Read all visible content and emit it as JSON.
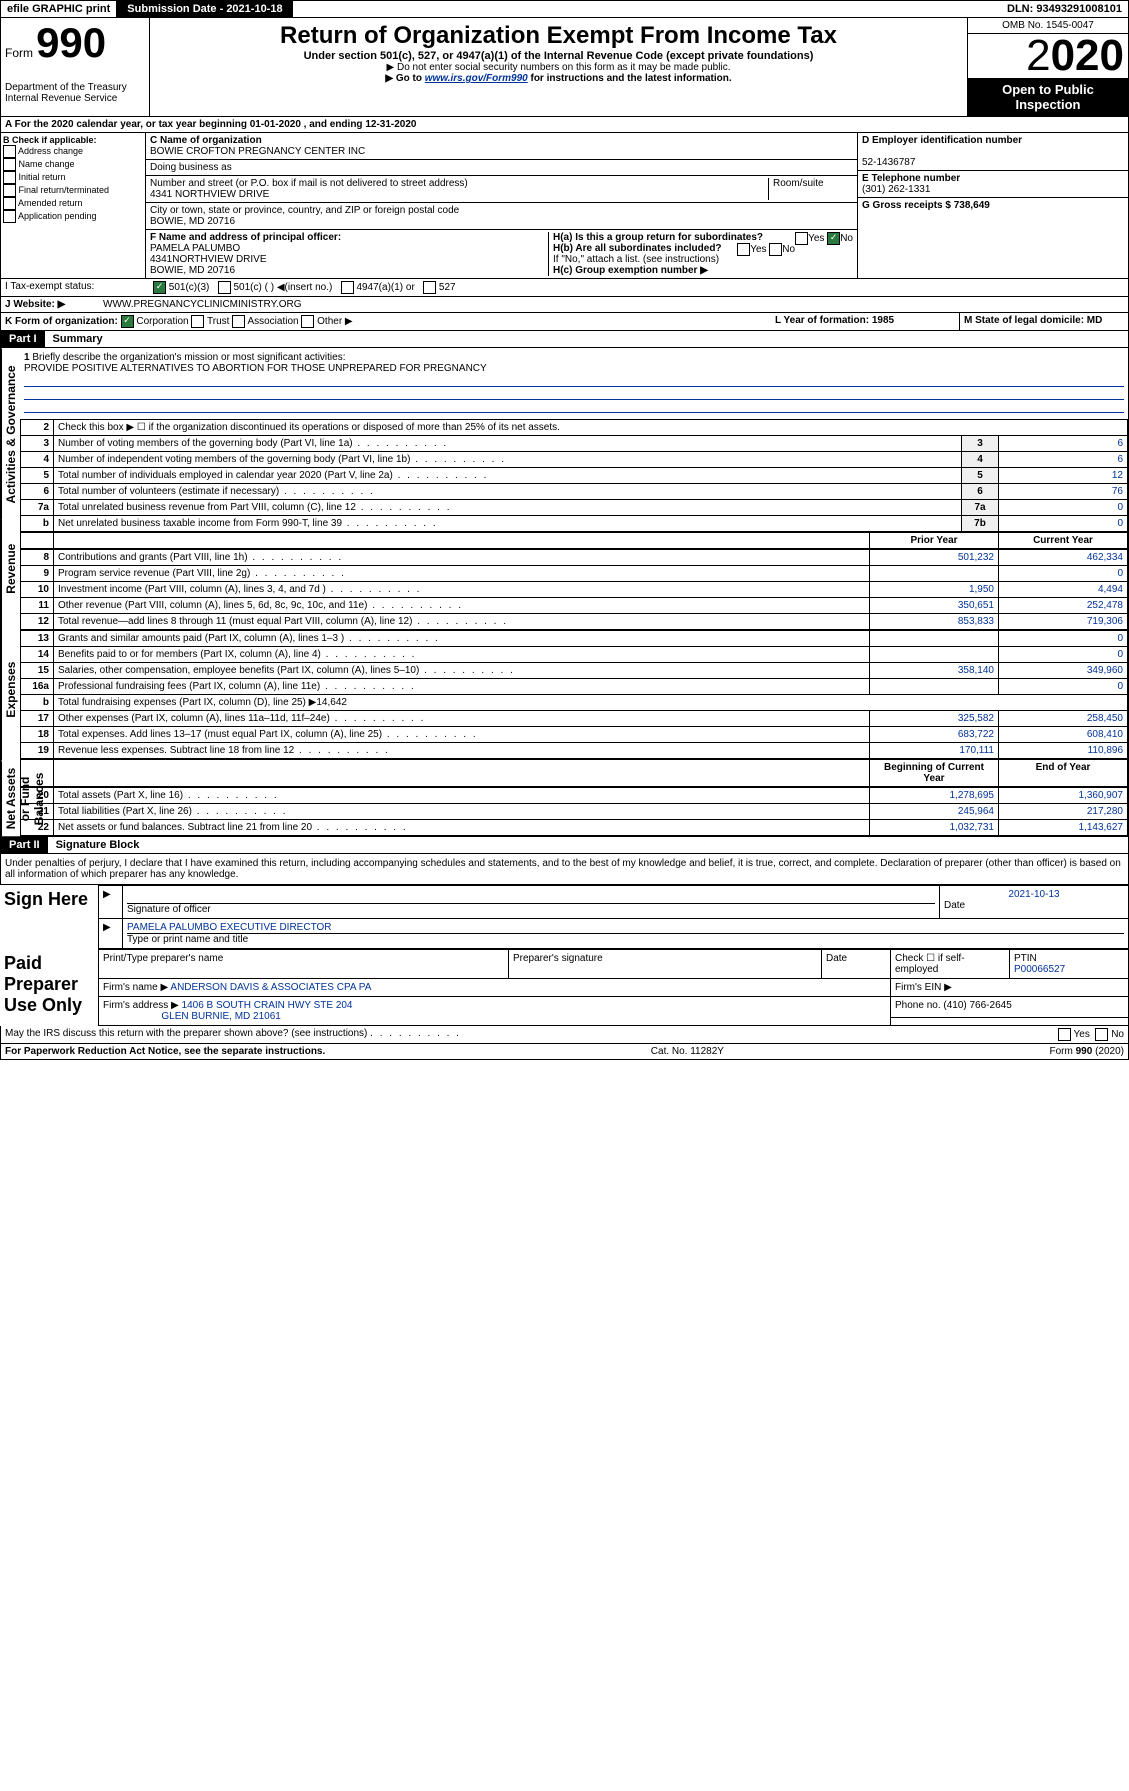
{
  "topbar": {
    "efile": "efile GRAPHIC print",
    "submission": "Submission Date - 2021-10-18",
    "dln": "DLN: 93493291008101"
  },
  "header": {
    "form_label": "Form",
    "form_no": "990",
    "dept": "Department of the Treasury\nInternal Revenue Service",
    "title": "Return of Organization Exempt From Income Tax",
    "subtitle": "Under section 501(c), 527, or 4947(a)(1) of the Internal Revenue Code (except private foundations)",
    "note1": "▶ Do not enter social security numbers on this form as it may be made public.",
    "note2_pre": "▶ Go to ",
    "note2_link": "www.irs.gov/Form990",
    "note2_post": " for instructions and the latest information.",
    "omb": "OMB No. 1545-0047",
    "year_prefix": "2",
    "year_suffix": "020",
    "open": "Open to Public Inspection"
  },
  "row_a": "A For the 2020 calendar year, or tax year beginning 01-01-2020    , and ending 12-31-2020",
  "section_b": {
    "label": "B Check if applicable:",
    "checks": [
      "Address change",
      "Name change",
      "Initial return",
      "Final return/terminated",
      "Amended return",
      "Application pending"
    ],
    "c_label": "C Name of organization",
    "c_name": "BOWIE CROFTON PREGNANCY CENTER INC",
    "dba": "Doing business as",
    "addr_label": "Number and street (or P.O. box if mail is not delivered to street address)",
    "room": "Room/suite",
    "addr": "4341 NORTHVIEW DRIVE",
    "city_label": "City or town, state or province, country, and ZIP or foreign postal code",
    "city": "BOWIE, MD  20716",
    "f_label": "F Name and address of principal officer:",
    "f_name": "PAMELA PALUMBO",
    "f_addr1": "4341NORTHVIEW DRIVE",
    "f_addr2": "BOWIE, MD  20716",
    "d_label": "D Employer identification number",
    "d_val": "52-1436787",
    "e_label": "E Telephone number",
    "e_val": "(301) 262-1331",
    "g_label": "G Gross receipts $ 738,649",
    "ha_label": "H(a)  Is this a group return for subordinates?",
    "hb_label": "H(b)  Are all subordinates included?",
    "hb_note": "If \"No,\" attach a list. (see instructions)",
    "hc_label": "H(c)  Group exemption number ▶",
    "yes": "Yes",
    "no": "No"
  },
  "row_i": {
    "label": "I    Tax-exempt status:",
    "o1": "501(c)(3)",
    "o2": "501(c) (  ) ◀(insert no.)",
    "o3": "4947(a)(1) or",
    "o4": "527"
  },
  "row_j": {
    "label": "J    Website: ▶",
    "val": "WWW.PREGNANCYCLINICMINISTRY.ORG"
  },
  "row_k": {
    "label": "K Form of organization:",
    "o1": "Corporation",
    "o2": "Trust",
    "o3": "Association",
    "o4": "Other ▶",
    "l_label": "L Year of formation: 1985",
    "m_label": "M State of legal domicile: MD"
  },
  "part1": {
    "header": "Part I",
    "title": "Summary"
  },
  "briefly": {
    "num": "1",
    "label": "Briefly describe the organization's mission or most significant activities:",
    "text": "PROVIDE POSITIVE ALTERNATIVES TO ABORTION FOR THOSE UNPREPARED FOR PREGNANCY"
  },
  "governance_rows": [
    {
      "n": "2",
      "d": "Check this box ▶ ☐  if the organization discontinued its operations or disposed of more than 25% of its net assets.",
      "box": "",
      "v": ""
    },
    {
      "n": "3",
      "d": "Number of voting members of the governing body (Part VI, line 1a)",
      "box": "3",
      "v": "6"
    },
    {
      "n": "4",
      "d": "Number of independent voting members of the governing body (Part VI, line 1b)",
      "box": "4",
      "v": "6"
    },
    {
      "n": "5",
      "d": "Total number of individuals employed in calendar year 2020 (Part V, line 2a)",
      "box": "5",
      "v": "12"
    },
    {
      "n": "6",
      "d": "Total number of volunteers (estimate if necessary)",
      "box": "6",
      "v": "76"
    },
    {
      "n": "7a",
      "d": "Total unrelated business revenue from Part VIII, column (C), line 12",
      "box": "7a",
      "v": "0"
    },
    {
      "n": "b",
      "d": "Net unrelated business taxable income from Form 990-T, line 39",
      "box": "7b",
      "v": "0"
    }
  ],
  "rev_head": {
    "prior": "Prior Year",
    "current": "Current Year"
  },
  "revenue_rows": [
    {
      "n": "8",
      "d": "Contributions and grants (Part VIII, line 1h)",
      "p": "501,232",
      "c": "462,334"
    },
    {
      "n": "9",
      "d": "Program service revenue (Part VIII, line 2g)",
      "p": "",
      "c": "0"
    },
    {
      "n": "10",
      "d": "Investment income (Part VIII, column (A), lines 3, 4, and 7d )",
      "p": "1,950",
      "c": "4,494"
    },
    {
      "n": "11",
      "d": "Other revenue (Part VIII, column (A), lines 5, 6d, 8c, 9c, 10c, and 11e)",
      "p": "350,651",
      "c": "252,478"
    },
    {
      "n": "12",
      "d": "Total revenue—add lines 8 through 11 (must equal Part VIII, column (A), line 12)",
      "p": "853,833",
      "c": "719,306"
    }
  ],
  "expense_rows": [
    {
      "n": "13",
      "d": "Grants and similar amounts paid (Part IX, column (A), lines 1–3 )",
      "p": "",
      "c": "0"
    },
    {
      "n": "14",
      "d": "Benefits paid to or for members (Part IX, column (A), line 4)",
      "p": "",
      "c": "0"
    },
    {
      "n": "15",
      "d": "Salaries, other compensation, employee benefits (Part IX, column (A), lines 5–10)",
      "p": "358,140",
      "c": "349,960"
    },
    {
      "n": "16a",
      "d": "Professional fundraising fees (Part IX, column (A), line 11e)",
      "p": "",
      "c": "0"
    },
    {
      "n": "b",
      "d": "Total fundraising expenses (Part IX, column (D), line 25) ▶14,642",
      "p": "—",
      "c": "—"
    },
    {
      "n": "17",
      "d": "Other expenses (Part IX, column (A), lines 11a–11d, 11f–24e)",
      "p": "325,582",
      "c": "258,450"
    },
    {
      "n": "18",
      "d": "Total expenses. Add lines 13–17 (must equal Part IX, column (A), line 25)",
      "p": "683,722",
      "c": "608,410"
    },
    {
      "n": "19",
      "d": "Revenue less expenses. Subtract line 18 from line 12",
      "p": "170,111",
      "c": "110,896"
    }
  ],
  "net_head": {
    "begin": "Beginning of Current Year",
    "end": "End of Year"
  },
  "net_rows": [
    {
      "n": "20",
      "d": "Total assets (Part X, line 16)",
      "p": "1,278,695",
      "c": "1,360,907"
    },
    {
      "n": "21",
      "d": "Total liabilities (Part X, line 26)",
      "p": "245,964",
      "c": "217,280"
    },
    {
      "n": "22",
      "d": "Net assets or fund balances. Subtract line 21 from line 20",
      "p": "1,032,731",
      "c": "1,143,627"
    }
  ],
  "vert": {
    "gov": "Activities & Governance",
    "rev": "Revenue",
    "exp": "Expenses",
    "net": "Net Assets or Fund Balances"
  },
  "part2": {
    "header": "Part II",
    "title": "Signature Block"
  },
  "sig_text": "Under penalties of perjury, I declare that I have examined this return, including accompanying schedules and statements, and to the best of my knowledge and belief, it is true, correct, and complete. Declaration of preparer (other than officer) is based on all information of which preparer has any knowledge.",
  "sign": {
    "here": "Sign Here",
    "sig_officer": "Signature of officer",
    "date": "2021-10-13",
    "date_label": "Date",
    "name": "PAMELA PALUMBO  EXECUTIVE DIRECTOR",
    "name_label": "Type or print name and title"
  },
  "paid": {
    "label": "Paid Preparer Use Only",
    "pt_name_label": "Print/Type preparer's name",
    "pt_sig_label": "Preparer's signature",
    "pt_date": "Date",
    "check_label": "Check ☐ if self-employed",
    "ptin_label": "PTIN",
    "ptin": "P00066527",
    "firm_name_label": "Firm's name    ▶",
    "firm_name": "ANDERSON DAVIS & ASSOCIATES CPA PA",
    "firm_ein_label": "Firm's EIN ▶",
    "firm_addr_label": "Firm's address ▶",
    "firm_addr1": "1406 B SOUTH CRAIN HWY STE 204",
    "firm_addr2": "GLEN BURNIE, MD  21061",
    "phone_label": "Phone no. (410) 766-2645"
  },
  "discuss": "May the IRS discuss this return with the preparer shown above? (see instructions)",
  "footer": {
    "left": "For Paperwork Reduction Act Notice, see the separate instructions.",
    "mid": "Cat. No. 11282Y",
    "right": "Form 990 (2020)"
  }
}
